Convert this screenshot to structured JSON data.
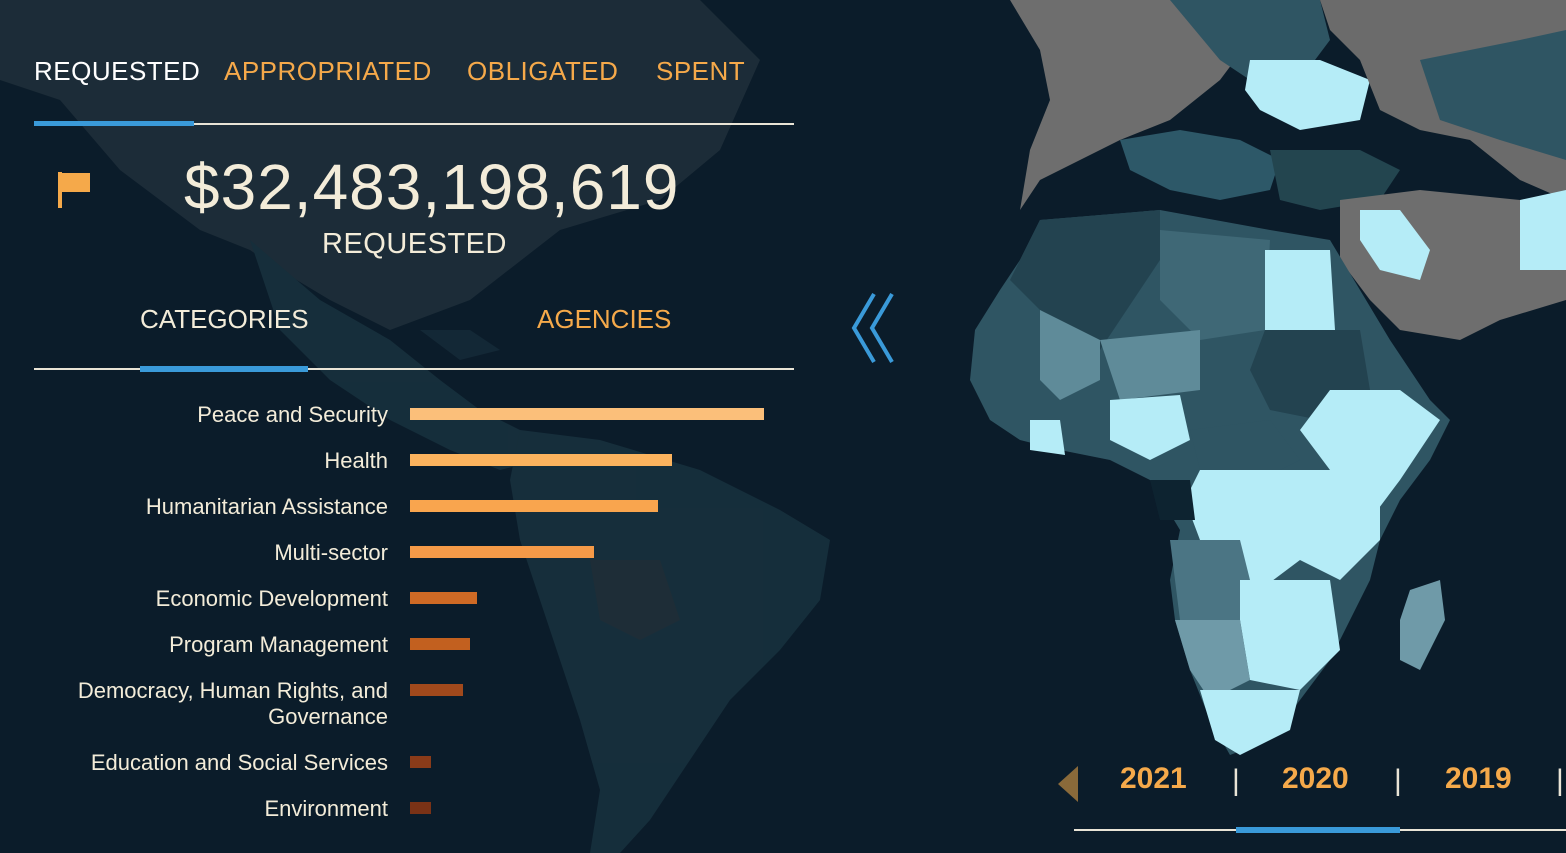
{
  "colors": {
    "accent_orange": "#f5a94a",
    "accent_blue": "#3a9ad9",
    "text_light": "#f3ecd9",
    "background": "#0b1c2a",
    "map_highlight": "#b5ecf7",
    "map_mid": "#4b7584",
    "map_dark": "#234350",
    "map_gray": "#6b6b6b"
  },
  "funding_tabs": [
    {
      "label": "REQUESTED",
      "active": true
    },
    {
      "label": "APPROPRIATED",
      "active": false
    },
    {
      "label": "OBLIGATED",
      "active": false
    },
    {
      "label": "SPENT",
      "active": false
    }
  ],
  "summary": {
    "icon": "flag-icon",
    "amount": "$32,483,198,619",
    "label": "REQUESTED"
  },
  "view_tabs": [
    {
      "label": "CATEGORIES",
      "active": true
    },
    {
      "label": "AGENCIES",
      "active": false
    }
  ],
  "chart_data": {
    "type": "bar",
    "orientation": "horizontal",
    "categories": [
      "Peace and Security",
      "Health",
      "Humanitarian Assistance",
      "Multi-sector",
      "Economic Development",
      "Program Management",
      "Democracy, Human Rights, and Governance",
      "Education and Social Services",
      "Environment"
    ],
    "values": [
      100,
      74,
      70,
      52,
      19,
      17,
      15,
      6,
      6
    ],
    "colors": [
      "#fbbf7a",
      "#fbb35e",
      "#f9a54e",
      "#f59a48",
      "#cf6a25",
      "#c2601f",
      "#a1491c",
      "#8a3b19",
      "#7a3216"
    ]
  },
  "nav": {
    "collapse_icon": "double-chevron-left-icon"
  },
  "year_selector": {
    "prev_icon": "triangle-left-icon",
    "years": [
      "2021",
      "2020",
      "2019"
    ],
    "selected": "2020"
  }
}
